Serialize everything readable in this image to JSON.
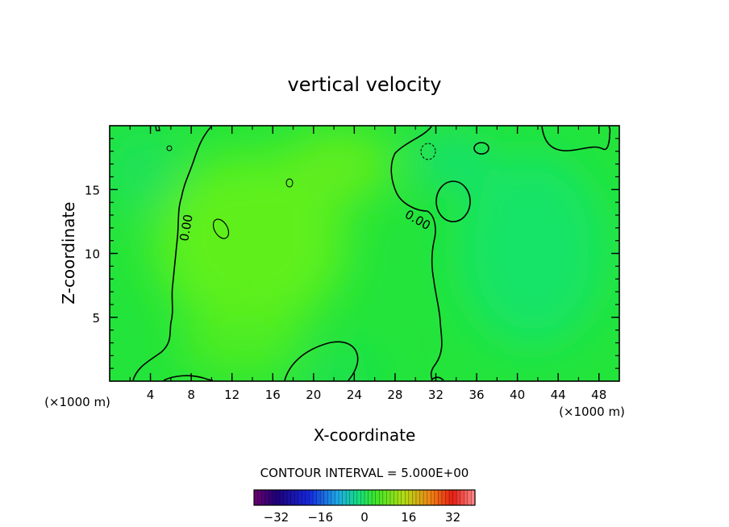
{
  "chart_data": {
    "type": "heatmap",
    "title": "vertical velocity",
    "xlabel": "X-coordinate",
    "ylabel": "Z-coordinate",
    "x_unit_left": "(×1000 m)",
    "x_unit_right": "(×1000 m)",
    "xlim": [
      0,
      50
    ],
    "ylim": [
      0,
      20
    ],
    "x_ticks": [
      "4",
      "8",
      "12",
      "16",
      "20",
      "24",
      "28",
      "32",
      "36",
      "40",
      "44",
      "48"
    ],
    "y_ticks": [
      "5",
      "10",
      "15"
    ],
    "contour_labels": [
      "0.00",
      "0.00"
    ],
    "contour_interval_text": "CONTOUR INTERVAL = 5.000E+00",
    "colorbar": {
      "range": [
        -40,
        40
      ],
      "ticks": [
        "−32",
        "−16",
        "0",
        "16",
        "32"
      ]
    },
    "colors": {
      "background_field": "#22e63a",
      "positive_warm": "#66ee1a",
      "negative_cool": "#12e666"
    }
  }
}
